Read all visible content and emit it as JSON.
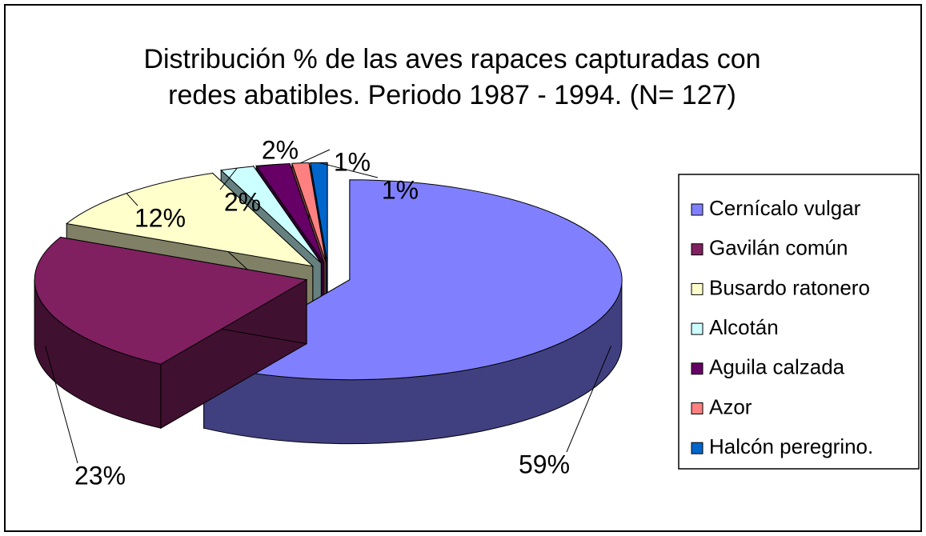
{
  "chart_data": {
    "type": "pie3d",
    "title": [
      "Distribución % de las aves rapaces capturadas con",
      "redes abatibles. Periodo 1987 - 1994. (N= 127)"
    ],
    "categories": [
      "Cernícalo vulgar",
      "Gavilán común",
      "Busardo ratonero",
      "Alcotán",
      "Aguila calzada",
      "Azor",
      "Halcón peregrino."
    ],
    "values": [
      59,
      23,
      12,
      2,
      2,
      1,
      1
    ],
    "value_labels": [
      "59%",
      "23%",
      "12%",
      "2%",
      "2%",
      "1%",
      "1%"
    ],
    "colors": [
      "#8080ff",
      "#802060",
      "#ffffcc",
      "#ccffff",
      "#660066",
      "#ff8080",
      "#0066cc"
    ],
    "legend": "right"
  }
}
